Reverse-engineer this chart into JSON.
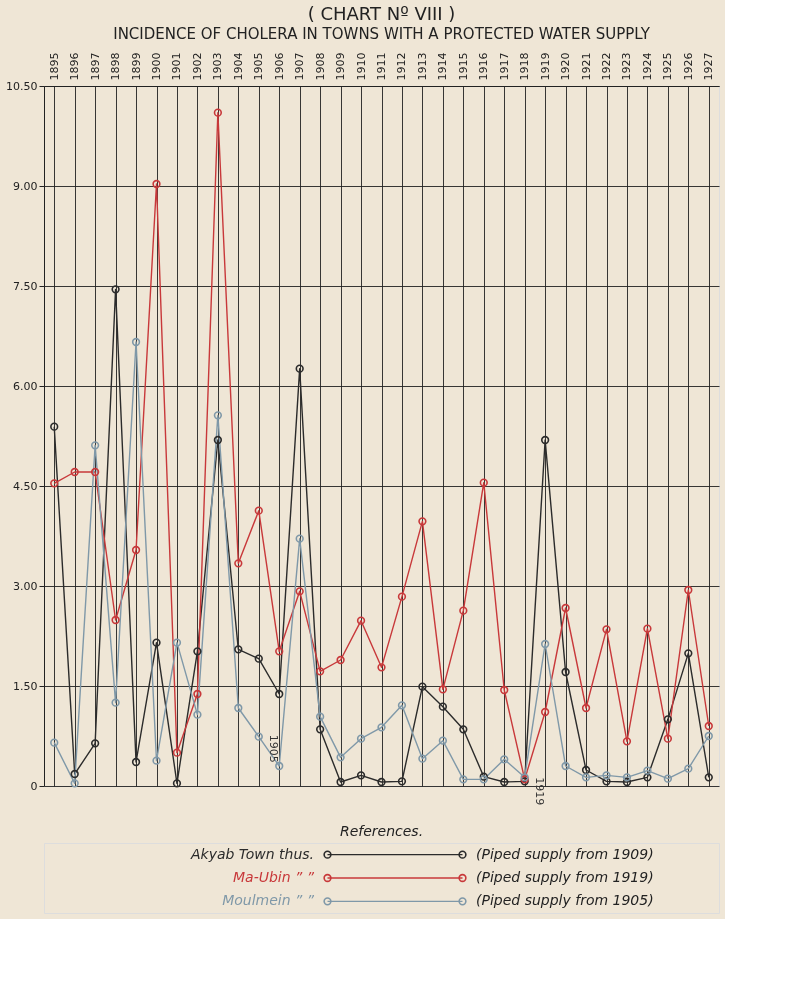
{
  "chart_data": {
    "type": "line",
    "title": "( CHART Nº VIII )",
    "subtitle": "INCIDENCE OF CHOLERA IN TOWNS WITH A PROTECTED WATER SUPPLY",
    "legend_title": "References.",
    "categories": [
      "1895",
      "1896",
      "1897",
      "1898",
      "1899",
      "1900",
      "1901",
      "1902",
      "1903",
      "1904",
      "1905",
      "1906",
      "1907",
      "1908",
      "1909",
      "1910",
      "1911",
      "1912",
      "1913",
      "1914",
      "1915",
      "1916",
      "1917",
      "1918",
      "1919",
      "1920",
      "1921",
      "1922",
      "1923",
      "1924",
      "1925",
      "1926",
      "1927"
    ],
    "series": [
      {
        "name": "Akyab Town thus.",
        "color": "#2b2b2b",
        "values": [
          5.39,
          0.18,
          0.64,
          7.45,
          0.36,
          2.15,
          0.04,
          2.02,
          5.19,
          2.05,
          1.91,
          1.38,
          6.26,
          0.85,
          0.06,
          0.16,
          0.06,
          0.07,
          1.49,
          1.19,
          0.85,
          0.14,
          0.06,
          0.07,
          5.19,
          1.71,
          0.24,
          0.07,
          0.06,
          0.13,
          1.0,
          1.99,
          0.13
        ]
      },
      {
        "name": "Ma-Ubin ” ”",
        "color": "#c8383a",
        "values": [
          4.54,
          4.71,
          4.71,
          2.49,
          3.54,
          9.03,
          0.5,
          1.38,
          10.1,
          3.34,
          4.13,
          2.02,
          2.92,
          1.72,
          1.89,
          2.48,
          1.78,
          2.84,
          3.97,
          1.45,
          2.63,
          4.55,
          1.44,
          0.1,
          1.11,
          2.67,
          1.17,
          2.35,
          0.67,
          2.36,
          0.71,
          2.94,
          0.9
        ]
      },
      {
        "name": "Moulmein ” ”",
        "color": "#7f98a8",
        "values": [
          0.65,
          0.04,
          5.11,
          1.25,
          6.66,
          0.38,
          2.15,
          1.07,
          5.56,
          1.17,
          0.74,
          0.3,
          3.71,
          1.04,
          0.43,
          0.71,
          0.88,
          1.21,
          0.41,
          0.68,
          0.1,
          0.1,
          0.4,
          0.13,
          2.13,
          0.3,
          0.13,
          0.16,
          0.13,
          0.23,
          0.11,
          0.26,
          0.75
        ]
      }
    ],
    "ylim": [
      0,
      10.5
    ],
    "yticks": [
      {
        "value": 0,
        "label": "0"
      },
      {
        "value": 1.5,
        "label": "1.50"
      },
      {
        "value": 3,
        "label": "3.00"
      },
      {
        "value": 4.5,
        "label": "4.50"
      },
      {
        "value": 6,
        "label": "6.00"
      },
      {
        "value": 7.5,
        "label": "7.50"
      },
      {
        "value": 9,
        "label": "9.00"
      },
      {
        "value": 10.5,
        "label": "10.50"
      }
    ],
    "grid": true,
    "legend": "bottom",
    "marker": "circle",
    "line_style": "solid",
    "annotations": [
      "(Piped supply from 1909)",
      "(Piped supply from 1919)",
      "(Piped supply from 1905)",
      {
        "text": "1905",
        "x": "1905",
        "y": 0.74
      },
      {
        "text": "1919",
        "x": "1918",
        "y": 0.1
      }
    ]
  }
}
